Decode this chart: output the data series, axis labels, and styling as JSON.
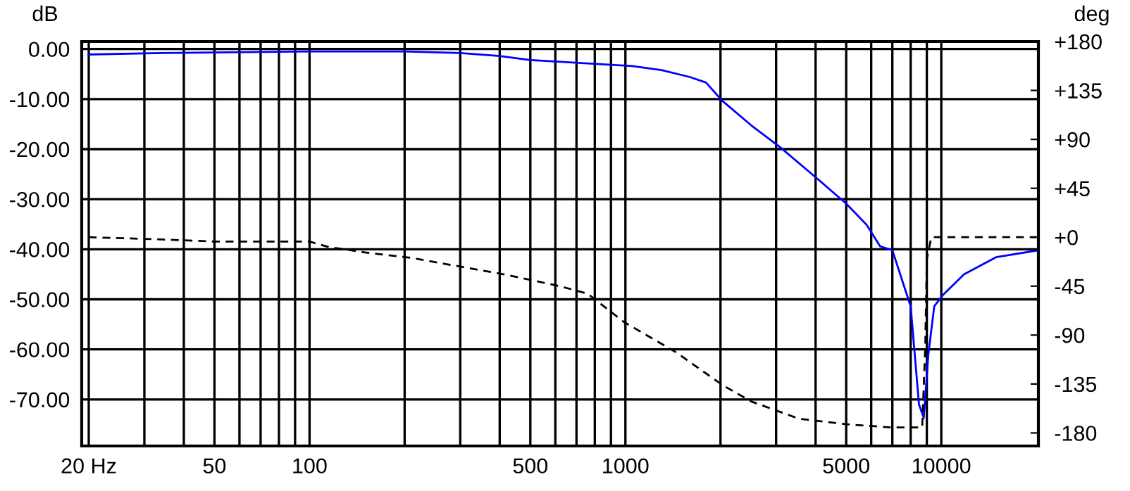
{
  "chart_data": {
    "type": "line",
    "ylabel": "dB",
    "y2label": "deg",
    "log": "x",
    "grid": true,
    "legend": false,
    "xlim": [
      19,
      20300
    ],
    "xticks": [
      {
        "value": 20,
        "label": "20 Hz"
      },
      {
        "value": 30,
        "label": null
      },
      {
        "value": 40,
        "label": null
      },
      50,
      {
        "value": 60,
        "label": null
      },
      {
        "value": 70,
        "label": null
      },
      {
        "value": 80,
        "label": null
      },
      {
        "value": 90,
        "label": null
      },
      100,
      {
        "value": 200,
        "label": null
      },
      {
        "value": 300,
        "label": null
      },
      {
        "value": 400,
        "label": null
      },
      500,
      {
        "value": 600,
        "label": null
      },
      {
        "value": 700,
        "label": null
      },
      {
        "value": 800,
        "label": null
      },
      {
        "value": 900,
        "label": null
      },
      1000,
      {
        "value": 2000,
        "label": null
      },
      {
        "value": 3000,
        "label": null
      },
      {
        "value": 4000,
        "label": null
      },
      5000,
      {
        "value": 6000,
        "label": null
      },
      {
        "value": 7000,
        "label": null
      },
      {
        "value": 8000,
        "label": null
      },
      {
        "value": 9000,
        "label": null
      },
      10000
    ],
    "ylim": [
      -79.3,
      1.5
    ],
    "yticks": [
      {
        "value": 0,
        "label": "0.00"
      },
      {
        "value": -10,
        "label": "-10.00"
      },
      {
        "value": -20,
        "label": "-20.00"
      },
      {
        "value": -30,
        "label": "-30.00"
      },
      {
        "value": -40,
        "label": "-40.00"
      },
      {
        "value": -50,
        "label": "-50.00"
      },
      {
        "value": -60,
        "label": "-60.00"
      },
      {
        "value": -70,
        "label": "-70.00"
      }
    ],
    "y2lim": [
      -192,
      180
    ],
    "y2ticks": [
      {
        "value": 180,
        "label": "+180"
      },
      {
        "value": 135,
        "label": "+135"
      },
      {
        "value": 90,
        "label": "+90"
      },
      {
        "value": 45,
        "label": "+45"
      },
      {
        "value": 0,
        "label": "+0"
      },
      {
        "value": -45,
        "label": "-45"
      },
      {
        "value": -90,
        "label": "-90"
      },
      {
        "value": -135,
        "label": "-135"
      },
      {
        "value": -180,
        "label": "-180"
      }
    ],
    "series": [
      {
        "color": "#0000ff",
        "line_style": "solid",
        "x": [
          20,
          34,
          100,
          200,
          300,
          400,
          500,
          1050,
          1300,
          1600,
          1800,
          2030,
          2530,
          3100,
          4050,
          5000,
          5800,
          6400,
          7000,
          8000,
          8500,
          8800,
          9100,
          9500,
          10100,
          11800,
          14900,
          20300
        ],
        "values": [
          -1.1,
          -0.8,
          -0.5,
          -0.5,
          -0.8,
          -1.4,
          -2.2,
          -3.4,
          -4.2,
          -5.6,
          -6.7,
          -10.4,
          -15.5,
          -19.7,
          -25.9,
          -30.9,
          -35.1,
          -39.4,
          -40.2,
          -51.4,
          -71,
          -73.7,
          -61,
          -51.4,
          -49.2,
          -45,
          -41.6,
          -40.2
        ]
      },
      {
        "color": "#000000",
        "line_style": "dashed",
        "axis": "y2",
        "x": [
          20,
          34,
          50,
          100,
          115,
          150,
          210,
          300,
          410,
          620,
          760,
          990,
          1450,
          2030,
          2500,
          3550,
          5000,
          7000,
          8700,
          8900,
          9000,
          9300,
          20000
        ],
        "values": [
          0,
          -2,
          -4,
          -4,
          -9,
          -14,
          -19,
          -27,
          -34,
          -45,
          -52,
          -78,
          -106,
          -136,
          -151,
          -167,
          -172,
          -175,
          -175,
          -100,
          -20,
          0,
          0
        ]
      }
    ]
  }
}
